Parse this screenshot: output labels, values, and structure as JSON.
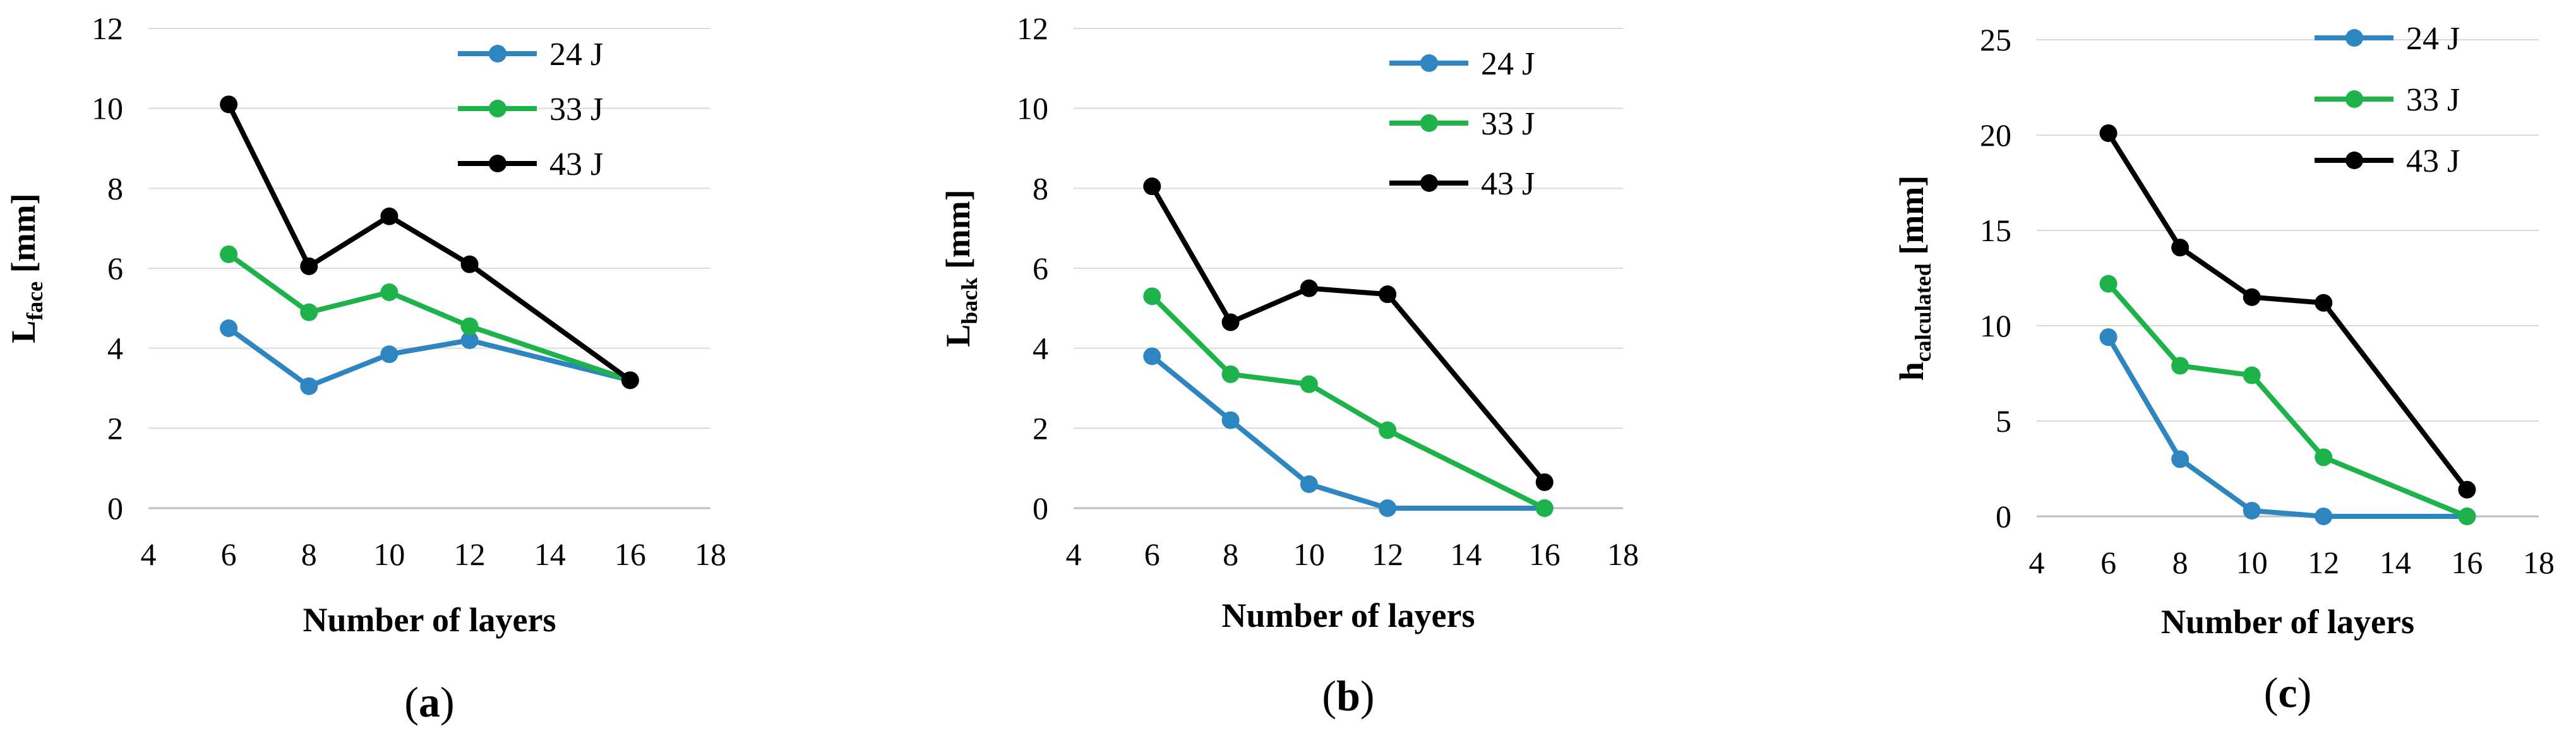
{
  "chart_data": [
    {
      "type": "line",
      "panel_label": "a",
      "ylabel_main": "L",
      "ylabel_sub": "face",
      "ylabel_unit": " [mm]",
      "xlabel": "Number of layers",
      "xlim": [
        4,
        18
      ],
      "xticks": [
        4,
        6,
        8,
        10,
        12,
        14,
        16,
        18
      ],
      "ylim": [
        0,
        12
      ],
      "yticks": [
        0,
        2,
        4,
        6,
        8,
        10,
        12
      ],
      "grid": true,
      "legend_position": "top-right",
      "x": [
        6,
        8,
        10,
        12,
        16
      ],
      "series": [
        {
          "name": "24 J",
          "color": "#2E86C1",
          "values": [
            4.5,
            3.05,
            3.85,
            4.2,
            3.2
          ]
        },
        {
          "name": "33 J",
          "color": "#1DB34A",
          "values": [
            6.35,
            4.9,
            5.4,
            4.55,
            3.2
          ]
        },
        {
          "name": "43 J",
          "color": "#000000",
          "values": [
            10.1,
            6.05,
            7.3,
            6.1,
            3.2
          ]
        }
      ]
    },
    {
      "type": "line",
      "panel_label": "b",
      "ylabel_main": "L",
      "ylabel_sub": "back",
      "ylabel_unit": " [mm]",
      "xlabel": "Number of layers",
      "xlim": [
        4,
        18
      ],
      "xticks": [
        4,
        6,
        8,
        10,
        12,
        14,
        16,
        18
      ],
      "ylim": [
        0,
        12
      ],
      "yticks": [
        0,
        2,
        4,
        6,
        8,
        10,
        12
      ],
      "grid": true,
      "legend_position": "top-right",
      "x": [
        6,
        8,
        10,
        12,
        16
      ],
      "series": [
        {
          "name": "24 J",
          "color": "#2E86C1",
          "values": [
            3.8,
            2.2,
            0.6,
            0.0,
            0.0
          ]
        },
        {
          "name": "33 J",
          "color": "#1DB34A",
          "values": [
            5.3,
            3.35,
            3.1,
            1.95,
            0.0
          ]
        },
        {
          "name": "43 J",
          "color": "#000000",
          "values": [
            8.05,
            4.65,
            5.5,
            5.35,
            0.65
          ]
        }
      ]
    },
    {
      "type": "line",
      "panel_label": "c",
      "ylabel_main": "h",
      "ylabel_sub": "calculated",
      "ylabel_unit": " [mm]",
      "xlabel": "Number of layers",
      "xlim": [
        4,
        18
      ],
      "xticks": [
        4,
        6,
        8,
        10,
        12,
        14,
        16,
        18
      ],
      "ylim": [
        0,
        25
      ],
      "yticks": [
        0,
        5,
        10,
        15,
        20,
        25
      ],
      "grid": true,
      "legend_position": "top-right",
      "x": [
        6,
        8,
        10,
        12,
        16
      ],
      "series": [
        {
          "name": "24 J",
          "color": "#2E86C1",
          "values": [
            9.4,
            3.0,
            0.3,
            0.0,
            0.0
          ]
        },
        {
          "name": "33 J",
          "color": "#1DB34A",
          "values": [
            12.2,
            7.9,
            7.4,
            3.1,
            0.0
          ]
        },
        {
          "name": "43 J",
          "color": "#000000",
          "values": [
            20.1,
            14.1,
            11.5,
            11.2,
            1.4
          ]
        }
      ]
    }
  ]
}
